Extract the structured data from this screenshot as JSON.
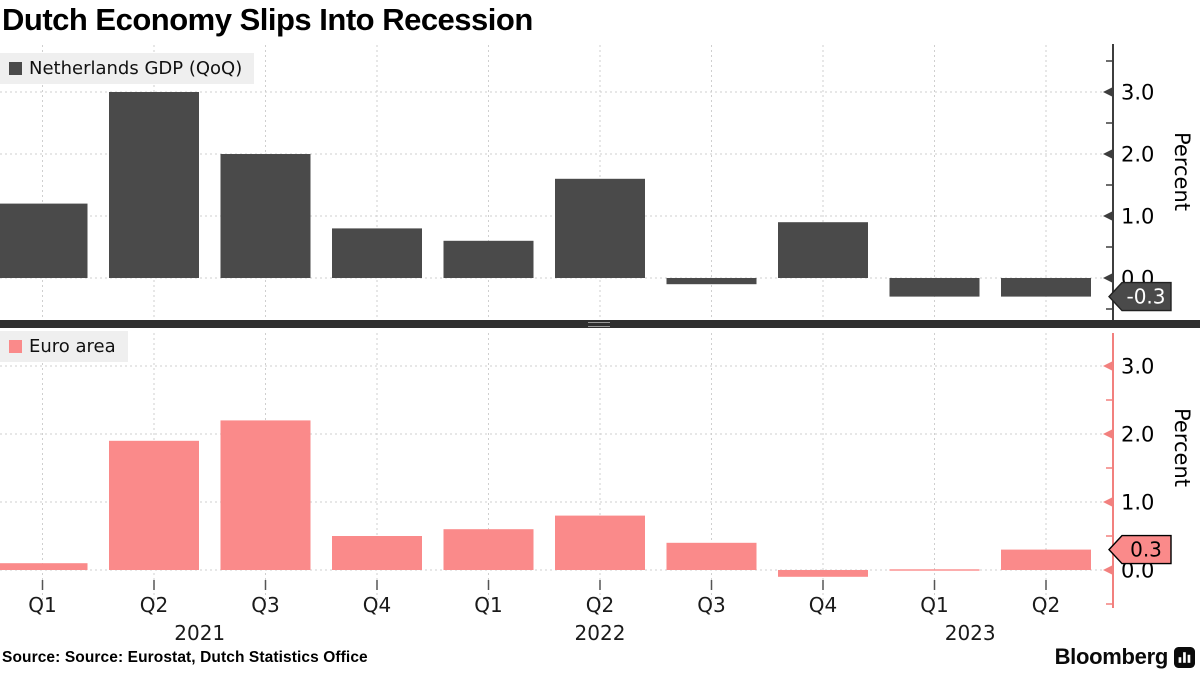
{
  "title": "Dutch Economy Slips Into Recession",
  "source_line": "Source: Source: Eurostat, Dutch Statistics Office",
  "brand": {
    "name": "Bloomberg"
  },
  "colors": {
    "netherlands_bar": "#4a4a4a",
    "euro_area_bar": "#fa8a8a",
    "top_axis": "#3d3d3d",
    "bottom_axis": "#f2807e",
    "legend_bg": "#efefef",
    "grid": "#cfcfcf",
    "divider": "#2f2f2f"
  },
  "x_axis": {
    "quarter_labels": [
      "Q1",
      "Q2",
      "Q3",
      "Q4",
      "Q1",
      "Q2",
      "Q3",
      "Q4",
      "Q1",
      "Q2"
    ],
    "year_labels": [
      {
        "label": "2021",
        "index": 1.41
      },
      {
        "label": "2022",
        "index": 5.0
      },
      {
        "label": "2023",
        "index": 8.32
      }
    ]
  },
  "chart_data": [
    {
      "type": "bar",
      "panel": "top",
      "legend": "Netherlands GDP (QoQ)",
      "ylabel": "Percent",
      "x": [
        "2021 Q1",
        "2021 Q2",
        "2021 Q3",
        "2021 Q4",
        "2022 Q1",
        "2022 Q2",
        "2022 Q3",
        "2022 Q4",
        "2023 Q1",
        "2023 Q2"
      ],
      "values": [
        1.2,
        3.0,
        2.0,
        0.8,
        0.6,
        1.6,
        -0.1,
        0.9,
        -0.3,
        -0.3
      ],
      "yticks": [
        3.0,
        2.0,
        1.0,
        0.0
      ],
      "ylim": [
        -0.7,
        3.8
      ],
      "grid": true,
      "legend_position": "top-left",
      "bar_color": "#4a4a4a",
      "last_value_label": "-0.3"
    },
    {
      "type": "bar",
      "panel": "bottom",
      "legend": "Euro area",
      "ylabel": "Percent",
      "x": [
        "2021 Q1",
        "2021 Q2",
        "2021 Q3",
        "2021 Q4",
        "2022 Q1",
        "2022 Q2",
        "2022 Q3",
        "2022 Q4",
        "2023 Q1",
        "2023 Q2"
      ],
      "values": [
        0.1,
        1.9,
        2.2,
        0.5,
        0.6,
        0.8,
        0.4,
        -0.1,
        0.0,
        0.3
      ],
      "yticks": [
        3.0,
        2.0,
        1.0,
        0.0
      ],
      "ylim": [
        -0.45,
        3.55
      ],
      "grid": true,
      "legend_position": "top-left",
      "bar_color": "#fa8a8a",
      "last_value_label": "0.3"
    }
  ]
}
